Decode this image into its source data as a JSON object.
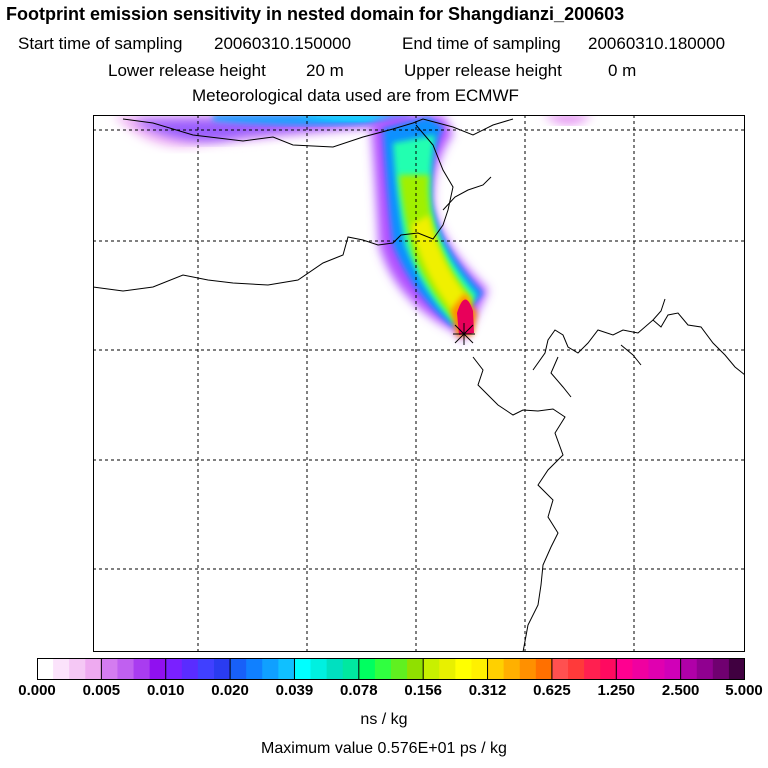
{
  "header": {
    "title": "Footprint emission sensitivity in nested domain for Shangdianzi_200603",
    "start_label": "Start time of sampling",
    "start_value": "20060310.150000",
    "end_label": "End time of sampling",
    "end_value": "20060310.180000",
    "lower_label": "Lower release height",
    "lower_value": "20 m",
    "upper_label": "Upper release height",
    "upper_value": "0 m",
    "met_line": "Meteorological data used are from ECMWF"
  },
  "map": {
    "receptor_marker": "star-icon",
    "plume_max_color": "#e8005a"
  },
  "colorbar": {
    "tick_labels": [
      "0.000",
      "0.005",
      "0.010",
      "0.020",
      "0.039",
      "0.078",
      "0.156",
      "0.312",
      "0.625",
      "1.250",
      "2.500",
      "5.000"
    ],
    "colors": [
      "#ffffff",
      "#fbe3fb",
      "#f5c8f5",
      "#eeaaf0",
      "#d47cf0",
      "#c060f0",
      "#a93cf0",
      "#9010f0",
      "#7a20ff",
      "#5a2cff",
      "#4040ff",
      "#2a3cf0",
      "#1860f8",
      "#1080ff",
      "#10a0ff",
      "#10c0ff",
      "#00ffff",
      "#00f0e0",
      "#00e0c0",
      "#00e8a0",
      "#00ff60",
      "#30ff40",
      "#60f020",
      "#90e000",
      "#c8f000",
      "#e8f000",
      "#ffff00",
      "#fff000",
      "#ffd000",
      "#ffb000",
      "#ff9000",
      "#ff7000",
      "#ff5050",
      "#ff3a3a",
      "#ff2050",
      "#ff0a60",
      "#ff0090",
      "#f000a0",
      "#e000b0",
      "#d000b8",
      "#b000a8",
      "#900090",
      "#700070",
      "#400040"
    ],
    "units": "ns / kg",
    "max_value": "Maximum value  0.576E+01 ps / kg"
  }
}
